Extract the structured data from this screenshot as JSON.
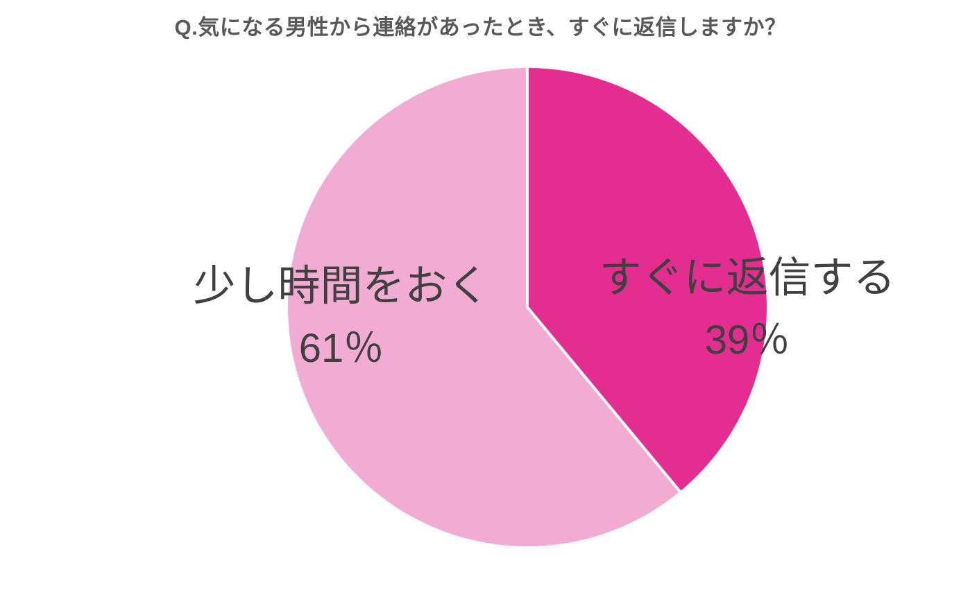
{
  "chart_data": {
    "type": "pie",
    "title": "Q.気になる男性から連絡があったとき、すぐに返信しますか？",
    "slices": [
      {
        "label": "すぐに返信する",
        "value": 39,
        "percent_label": "39％",
        "color": "#e32d90"
      },
      {
        "label": "少し時間をおく",
        "value": 61,
        "percent_label": "61％",
        "color": "#f2acd3"
      }
    ],
    "start_angle_deg": 0,
    "direction": "clockwise",
    "legend": "none",
    "labels_position": "inside",
    "title_color": "#595959",
    "label_color": "#404040",
    "divider_color": "#ffffff",
    "background_color": "#ffffff"
  }
}
